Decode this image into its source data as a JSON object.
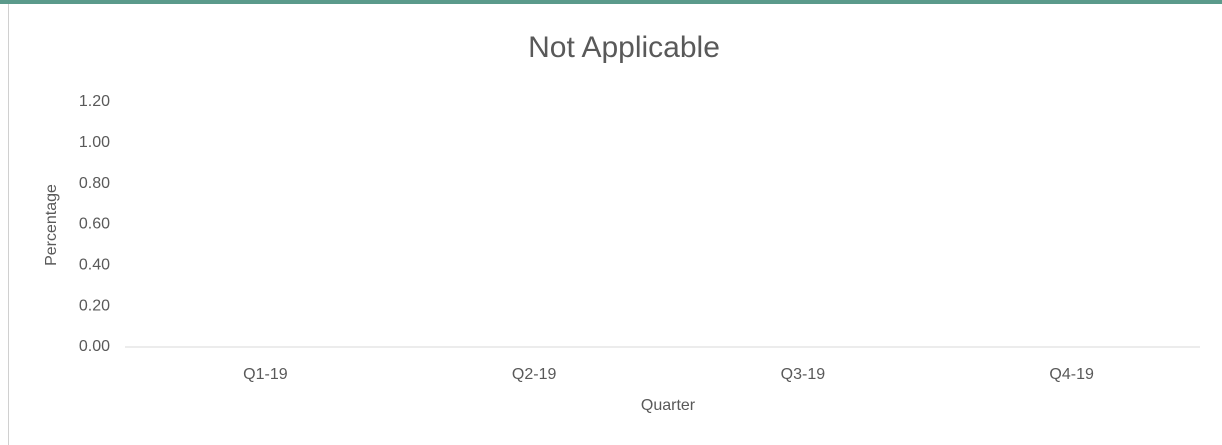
{
  "chart_data": {
    "type": "bar",
    "title": "Not Applicable",
    "x_label": "Quarter",
    "y_label": "Percentage",
    "categories": [
      "Q1-19",
      "Q2-19",
      "Q3-19",
      "Q4-19"
    ],
    "ylim": [
      0,
      1.2
    ],
    "yticks": [
      {
        "value": 0,
        "label": "0.00"
      },
      {
        "value": 0.2,
        "label": "0.20"
      },
      {
        "value": 0.4,
        "label": "0.40"
      },
      {
        "value": 0.6,
        "label": "0.60"
      },
      {
        "value": 0.8,
        "label": "0.80"
      },
      {
        "value": 1.0,
        "label": "1.00"
      },
      {
        "value": 1.2,
        "label": "1.20"
      }
    ],
    "grid": false
  }
}
